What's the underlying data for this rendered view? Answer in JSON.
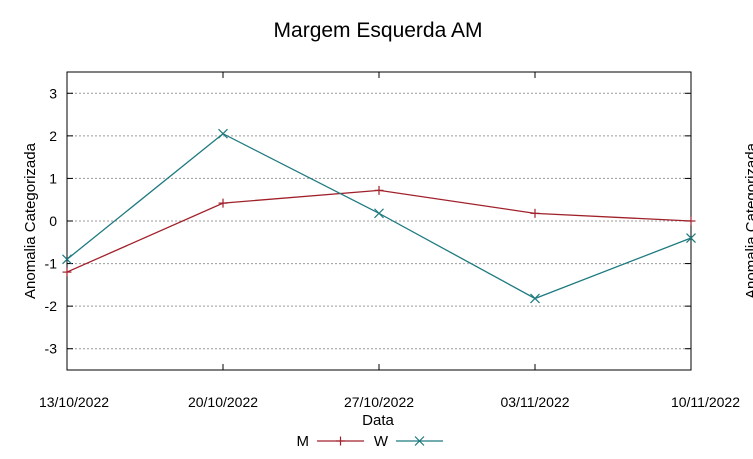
{
  "chart_data": {
    "type": "line",
    "title": "Margem Esquerda AM",
    "xlabel": "Data",
    "ylabel": "Anomalia Categorizada",
    "right_ylabel": "Anomalia Categorizada",
    "categories": [
      "13/10/2022",
      "20/10/2022",
      "27/10/2022",
      "03/11/2022",
      "10/11/2022"
    ],
    "yticks": [
      "3",
      "2",
      "1",
      "0",
      "-1",
      "-2",
      "-3"
    ],
    "ylim": [
      -3.5,
      3.5
    ],
    "grid": true,
    "legend_position": "bottom-center",
    "series": [
      {
        "name": "M",
        "color": "#a0202a",
        "marker": "plus",
        "values": [
          -1.2,
          0.42,
          0.72,
          0.18,
          0.0
        ]
      },
      {
        "name": "W",
        "color": "#1f7a80",
        "marker": "cross",
        "values": [
          -0.9,
          2.05,
          0.18,
          -1.82,
          -0.4
        ]
      }
    ]
  }
}
